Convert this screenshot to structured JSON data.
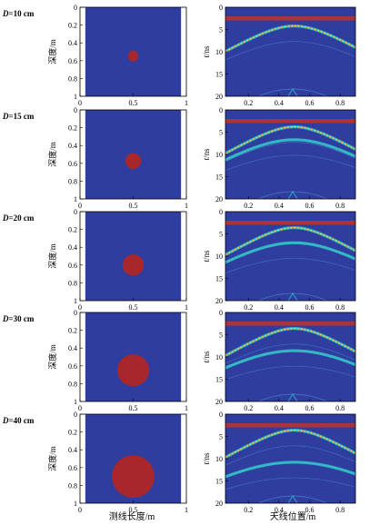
{
  "figure": {
    "xlabel_left": "测线长度/m",
    "xlabel_right": "天线位置/m"
  },
  "colors": {
    "background_field": "#2e3d9e",
    "object_fill": "#a8272d",
    "direct_wave": "#b23232",
    "reflection_core": "#f5c842",
    "reflection_mid": "#34c3c8",
    "reflection_faint": "#5fa3ee"
  },
  "chart_data": [
    {
      "type": "heatmap",
      "panel": "model",
      "label": "D=10 cm",
      "diameter_cm": 10,
      "ylabel": "深度/m",
      "xlim": [
        0,
        1
      ],
      "ylim": [
        0,
        1
      ],
      "xticks": [
        "0",
        "0.5",
        "1"
      ],
      "yticks": [
        "0",
        "0.2",
        "0.4",
        "0.6",
        "0.8",
        "1"
      ],
      "object": {
        "center_x_m": 0.5,
        "center_depth_m": 0.55,
        "diameter_m": 0.1
      }
    },
    {
      "type": "heatmap",
      "panel": "radargram",
      "ylabel": "t/ns",
      "xlim": [
        0.05,
        0.9
      ],
      "ylim": [
        0,
        20
      ],
      "xticks": [
        "0.2",
        "0.4",
        "0.6",
        "0.8"
      ],
      "yticks": [
        "0",
        "5",
        "10",
        "15",
        "20"
      ],
      "direct_wave_ns": 2.5,
      "hyperbolas": [
        {
          "apex_x_m": 0.5,
          "apex_t_ns": 4.2,
          "intensity": "strong"
        }
      ]
    },
    {
      "type": "heatmap",
      "panel": "model",
      "label": "D=15 cm",
      "diameter_cm": 15,
      "ylabel": "深度/m",
      "xlim": [
        0,
        1
      ],
      "ylim": [
        0,
        1
      ],
      "xticks": [
        "0",
        "0.5",
        "1"
      ],
      "yticks": [
        "0",
        "0.2",
        "0.4",
        "0.6",
        "0.8",
        "1"
      ],
      "object": {
        "center_x_m": 0.5,
        "center_depth_m": 0.575,
        "diameter_m": 0.15
      }
    },
    {
      "type": "heatmap",
      "panel": "radargram",
      "ylabel": "t/ns",
      "xlim": [
        0.05,
        0.9
      ],
      "ylim": [
        0,
        20
      ],
      "xticks": [
        "0.2",
        "0.4",
        "0.6",
        "0.8"
      ],
      "yticks": [
        "0",
        "5",
        "10",
        "15",
        "20"
      ],
      "direct_wave_ns": 2.5,
      "hyperbolas": [
        {
          "apex_x_m": 0.5,
          "apex_t_ns": 3.8,
          "intensity": "strong"
        },
        {
          "apex_x_m": 0.5,
          "apex_t_ns": 6.7,
          "intensity": "medium"
        }
      ]
    },
    {
      "type": "heatmap",
      "panel": "model",
      "label": "D=20 cm",
      "diameter_cm": 20,
      "ylabel": "深度/m",
      "xlim": [
        0,
        1
      ],
      "ylim": [
        0,
        1
      ],
      "xticks": [
        "0",
        "0.5",
        "1"
      ],
      "yticks": [
        "0",
        "0.2",
        "0.4",
        "0.6",
        "0.8",
        "1"
      ],
      "object": {
        "center_x_m": 0.5,
        "center_depth_m": 0.6,
        "diameter_m": 0.2
      }
    },
    {
      "type": "heatmap",
      "panel": "radargram",
      "ylabel": "t/ns",
      "xlim": [
        0.05,
        0.9
      ],
      "ylim": [
        0,
        20
      ],
      "xticks": [
        "0.2",
        "0.4",
        "0.6",
        "0.8"
      ],
      "yticks": [
        "0",
        "5",
        "10",
        "15",
        "20"
      ],
      "direct_wave_ns": 2.5,
      "hyperbolas": [
        {
          "apex_x_m": 0.5,
          "apex_t_ns": 3.6,
          "intensity": "strong"
        },
        {
          "apex_x_m": 0.5,
          "apex_t_ns": 7.0,
          "intensity": "medium"
        }
      ]
    },
    {
      "type": "heatmap",
      "panel": "model",
      "label": "D=30 cm",
      "diameter_cm": 30,
      "ylabel": "深度/m",
      "xlim": [
        0,
        1
      ],
      "ylim": [
        0,
        1
      ],
      "xticks": [
        "0",
        "0.5",
        "1"
      ],
      "yticks": [
        "0",
        "0.2",
        "0.4",
        "0.6",
        "0.8",
        "1"
      ],
      "object": {
        "center_x_m": 0.5,
        "center_depth_m": 0.65,
        "diameter_m": 0.3
      }
    },
    {
      "type": "heatmap",
      "panel": "radargram",
      "ylabel": "t/ns",
      "xlim": [
        0.05,
        0.9
      ],
      "ylim": [
        0,
        20
      ],
      "xticks": [
        "0.2",
        "0.4",
        "0.6",
        "0.8"
      ],
      "yticks": [
        "0",
        "5",
        "10",
        "15",
        "20"
      ],
      "direct_wave_ns": 2.5,
      "hyperbolas": [
        {
          "apex_x_m": 0.5,
          "apex_t_ns": 3.6,
          "intensity": "strong"
        },
        {
          "apex_x_m": 0.5,
          "apex_t_ns": 8.6,
          "intensity": "medium"
        }
      ]
    },
    {
      "type": "heatmap",
      "panel": "model",
      "label": "D=40 cm",
      "diameter_cm": 40,
      "ylabel": "深度/m",
      "xlim": [
        0,
        1
      ],
      "ylim": [
        0,
        1
      ],
      "xticks": [
        "0",
        "0.5",
        "1"
      ],
      "yticks": [
        "0",
        "0.2",
        "0.4",
        "0.6",
        "0.8",
        "1"
      ],
      "object": {
        "center_x_m": 0.5,
        "center_depth_m": 0.7,
        "diameter_m": 0.4
      }
    },
    {
      "type": "heatmap",
      "panel": "radargram",
      "ylabel": "t/ns",
      "xlim": [
        0.05,
        0.9
      ],
      "ylim": [
        0,
        20
      ],
      "xticks": [
        "0.2",
        "0.4",
        "0.6",
        "0.8"
      ],
      "yticks": [
        "0",
        "5",
        "10",
        "15",
        "20"
      ],
      "direct_wave_ns": 2.5,
      "hyperbolas": [
        {
          "apex_x_m": 0.5,
          "apex_t_ns": 3.6,
          "intensity": "strong"
        },
        {
          "apex_x_m": 0.5,
          "apex_t_ns": 10.8,
          "intensity": "medium"
        }
      ]
    }
  ]
}
